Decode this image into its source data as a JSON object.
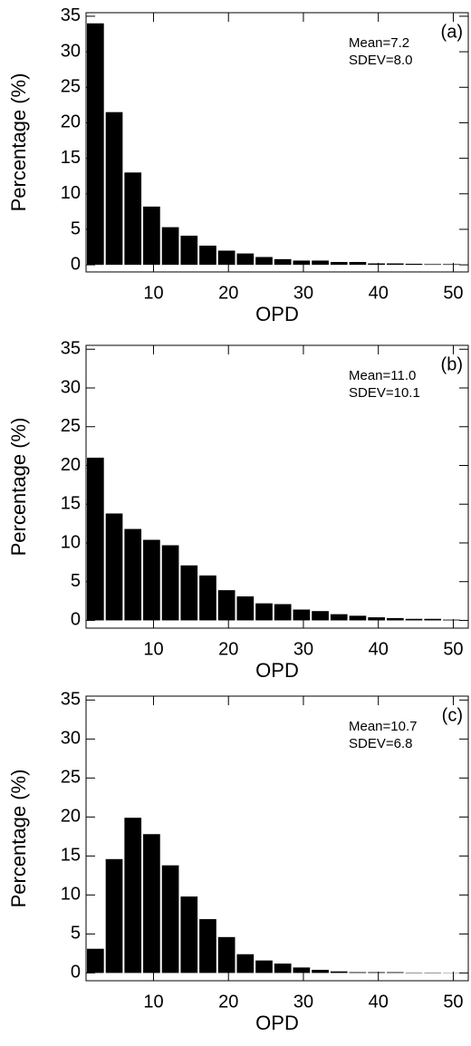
{
  "chart_data": [
    {
      "type": "histogram",
      "label": "(a)",
      "annotations": [
        "Mean=7.2",
        "SDEV=8.0"
      ],
      "xlabel": "OPD",
      "ylabel": "Percentage (%)",
      "bins": [
        1,
        3.5,
        6,
        8.5,
        11,
        13.5,
        16,
        18.5,
        21,
        23.5,
        26,
        28.5,
        31,
        33.5,
        36,
        38.5,
        41,
        43.5,
        46,
        48.5,
        51
      ],
      "values": [
        34,
        21.5,
        13,
        8.2,
        5.3,
        4.1,
        2.7,
        2.0,
        1.6,
        1.1,
        0.8,
        0.6,
        0.6,
        0.4,
        0.4,
        0.2,
        0.2,
        0.15,
        0.1,
        0.1
      ],
      "color": "#000000",
      "xlim": [
        1,
        52
      ],
      "ylim": [
        -1,
        35.5
      ],
      "xticks": [
        10,
        20,
        30,
        40,
        50
      ],
      "yticks": [
        0,
        5,
        10,
        15,
        20,
        25,
        30,
        35
      ]
    },
    {
      "type": "histogram",
      "label": "(b)",
      "annotations": [
        "Mean=11.0",
        "SDEV=10.1"
      ],
      "xlabel": "OPD",
      "ylabel": "Percentage (%)",
      "bins": [
        1,
        3.5,
        6,
        8.5,
        11,
        13.5,
        16,
        18.5,
        21,
        23.5,
        26,
        28.5,
        31,
        33.5,
        36,
        38.5,
        41,
        43.5,
        46,
        48.5,
        51
      ],
      "values": [
        21,
        13.8,
        11.8,
        10.4,
        9.7,
        7.1,
        5.8,
        3.9,
        3.1,
        2.2,
        2.1,
        1.4,
        1.2,
        0.8,
        0.6,
        0.4,
        0.3,
        0.2,
        0.2,
        0.1
      ],
      "color": "#000000",
      "xlim": [
        1,
        52
      ],
      "ylim": [
        -1,
        35.5
      ],
      "xticks": [
        10,
        20,
        30,
        40,
        50
      ],
      "yticks": [
        0,
        5,
        10,
        15,
        20,
        25,
        30,
        35
      ]
    },
    {
      "type": "histogram",
      "label": "(c)",
      "annotations": [
        "Mean=10.7",
        "SDEV=6.8"
      ],
      "xlabel": "OPD",
      "ylabel": "Percentage (%)",
      "bins": [
        1,
        3.5,
        6,
        8.5,
        11,
        13.5,
        16,
        18.5,
        21,
        23.5,
        26,
        28.5,
        31,
        33.5,
        36,
        38.5,
        41,
        43.5,
        46,
        48.5,
        51
      ],
      "values": [
        3.1,
        14.6,
        19.9,
        17.8,
        13.8,
        9.8,
        6.9,
        4.6,
        2.4,
        1.6,
        1.2,
        0.7,
        0.4,
        0.2,
        0.1,
        0.1,
        0.1,
        0.05,
        0.05,
        0.03
      ],
      "color": "#000000",
      "xlim": [
        1,
        52
      ],
      "ylim": [
        -1,
        35.5
      ],
      "xticks": [
        10,
        20,
        30,
        40,
        50
      ],
      "yticks": [
        0,
        5,
        10,
        15,
        20,
        25,
        30,
        35
      ]
    }
  ]
}
